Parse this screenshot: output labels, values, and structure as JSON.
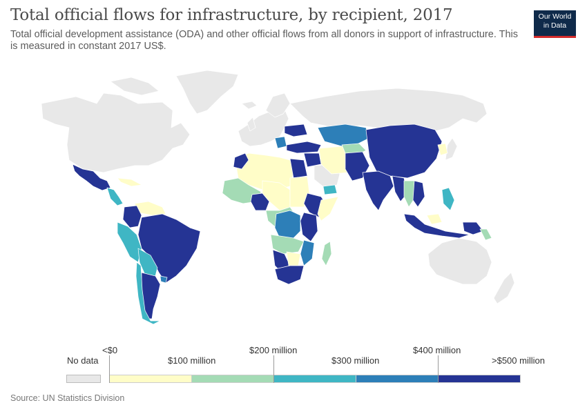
{
  "header": {
    "title": "Total official flows for infrastructure, by recipient, 2017",
    "subtitle": "Total official development assistance (ODA) and other official flows from all donors in support of infrastructure. This is measured in constant 2017 US$."
  },
  "logo": {
    "line1": "Our World",
    "line2": "in Data"
  },
  "legend": {
    "no_data_label": "No data",
    "no_data_color": "#e8e8e8",
    "bins": [
      {
        "color": "#fffdc8"
      },
      {
        "color": "#a4dbb5"
      },
      {
        "color": "#3fb6c4"
      },
      {
        "color": "#2d7fb8"
      },
      {
        "color": "#253494"
      }
    ],
    "labels": [
      "<$0",
      "$100 million",
      "$200 million",
      "$300 million",
      "$400 million",
      ">$500 million"
    ]
  },
  "footer": {
    "source": "Source: UN Statistics Division"
  },
  "colors": {
    "no_data": "#e8e8e8",
    "bin1": "#fffdc8",
    "bin2": "#a4dbb5",
    "bin3": "#3fb6c4",
    "bin4": "#2d7fb8",
    "bin5": "#253494"
  }
}
